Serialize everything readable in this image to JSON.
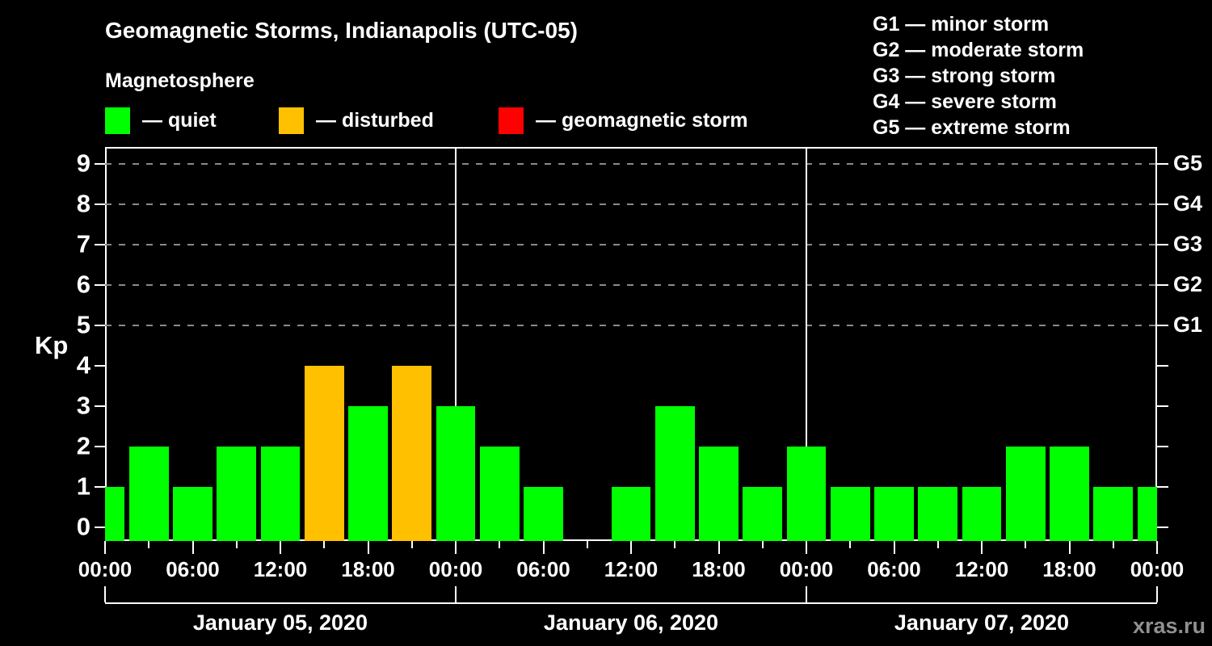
{
  "title": "Geomagnetic Storms, Indianapolis (UTC-05)",
  "subtitle": "Magnetosphere",
  "watermark": "xras.ru",
  "colors": {
    "background": "#000000",
    "frame": "#ffffff",
    "grid": "#8a8a8a",
    "text": "#ffffff",
    "watermark": "#909090",
    "status": {
      "quiet": "#00ff00",
      "disturbed": "#ffc000",
      "storm": "#ff0000"
    }
  },
  "legend": {
    "items": [
      {
        "status": "quiet",
        "label": "— quiet"
      },
      {
        "status": "disturbed",
        "label": "— disturbed"
      },
      {
        "status": "storm",
        "label": "— geomagnetic storm"
      }
    ]
  },
  "g_legend": {
    "items": [
      {
        "text": "G1 — minor storm"
      },
      {
        "text": "G2 — moderate storm"
      },
      {
        "text": "G3 — strong storm"
      },
      {
        "text": "G4 — severe storm"
      },
      {
        "text": "G5 — extreme storm"
      }
    ]
  },
  "chart_data": {
    "type": "bar",
    "title": "Geomagnetic Storms, Indianapolis (UTC-05)",
    "ylabel": "Kp",
    "ylim": [
      0,
      9
    ],
    "yticks": [
      0,
      1,
      2,
      3,
      4,
      5,
      6,
      7,
      8,
      9
    ],
    "gridlines_at_kp": [
      5,
      6,
      7,
      8,
      9
    ],
    "right_axis_labels": [
      {
        "kp": 5,
        "label": "G1"
      },
      {
        "kp": 6,
        "label": "G2"
      },
      {
        "kp": 7,
        "label": "G3"
      },
      {
        "kp": 8,
        "label": "G4"
      },
      {
        "kp": 9,
        "label": "G5"
      }
    ],
    "x_span_hours": 72,
    "x_major_tick_hours": 6,
    "x_minor_tick_hours": 3,
    "x_tick_labels": [
      "00:00",
      "06:00",
      "12:00",
      "18:00",
      "00:00",
      "06:00",
      "12:00",
      "18:00",
      "00:00",
      "06:00",
      "12:00",
      "18:00",
      "00:00"
    ],
    "slot_hours": [
      "00:00",
      "03:00",
      "06:00",
      "09:00",
      "12:00",
      "15:00",
      "18:00",
      "21:00"
    ],
    "days": [
      {
        "label": "January 05, 2020",
        "values": [
          {
            "hour": "00:00",
            "kp": 1,
            "status": "quiet"
          },
          {
            "hour": "03:00",
            "kp": 2,
            "status": "quiet"
          },
          {
            "hour": "06:00",
            "kp": 1,
            "status": "quiet"
          },
          {
            "hour": "09:00",
            "kp": 2,
            "status": "quiet"
          },
          {
            "hour": "12:00",
            "kp": 2,
            "status": "quiet"
          },
          {
            "hour": "15:00",
            "kp": 4,
            "status": "disturbed"
          },
          {
            "hour": "18:00",
            "kp": 3,
            "status": "quiet"
          },
          {
            "hour": "21:00",
            "kp": 4,
            "status": "disturbed"
          }
        ]
      },
      {
        "label": "January 06, 2020",
        "values": [
          {
            "hour": "00:00",
            "kp": 3,
            "status": "quiet"
          },
          {
            "hour": "03:00",
            "kp": 2,
            "status": "quiet"
          },
          {
            "hour": "06:00",
            "kp": 1,
            "status": "quiet"
          },
          {
            "hour": "09:00",
            "kp": null,
            "status": "no data"
          },
          {
            "hour": "12:00",
            "kp": 1,
            "status": "quiet"
          },
          {
            "hour": "15:00",
            "kp": 3,
            "status": "quiet"
          },
          {
            "hour": "18:00",
            "kp": 2,
            "status": "quiet"
          },
          {
            "hour": "21:00",
            "kp": 1,
            "status": "quiet"
          }
        ]
      },
      {
        "label": "January 07, 2020",
        "values": [
          {
            "hour": "00:00",
            "kp": 2,
            "status": "quiet"
          },
          {
            "hour": "03:00",
            "kp": 1,
            "status": "quiet"
          },
          {
            "hour": "06:00",
            "kp": 1,
            "status": "quiet"
          },
          {
            "hour": "09:00",
            "kp": 1,
            "status": "quiet"
          },
          {
            "hour": "12:00",
            "kp": 1,
            "status": "quiet"
          },
          {
            "hour": "15:00",
            "kp": 2,
            "status": "quiet"
          },
          {
            "hour": "18:00",
            "kp": 2,
            "status": "quiet"
          },
          {
            "hour": "21:00",
            "kp": 1,
            "status": "quiet"
          }
        ]
      }
    ],
    "trailing_bar": {
      "hour": "00:00",
      "kp": 1,
      "status": "quiet"
    }
  }
}
